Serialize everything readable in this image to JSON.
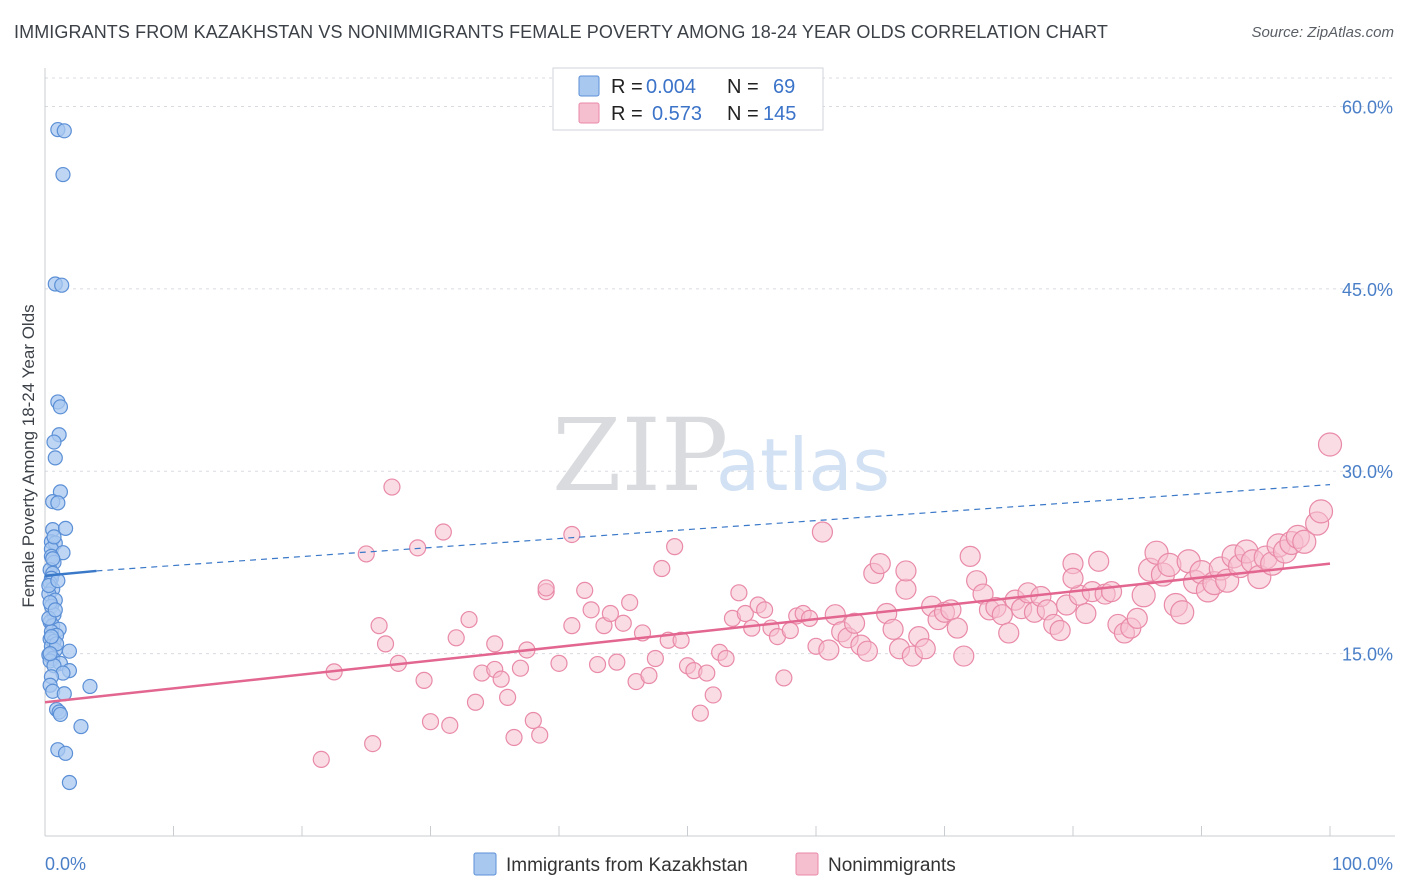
{
  "title": "IMMIGRANTS FROM KAZAKHSTAN VS NONIMMIGRANTS FEMALE POVERTY AMONG 18-24 YEAR OLDS CORRELATION CHART",
  "source": "Source: ZipAtlas.com",
  "watermark": {
    "zip": "ZIP",
    "atlas": "atlas"
  },
  "colors": {
    "blue_fill": "#a8c8f0",
    "blue_stroke": "#5b8fd6",
    "blue_line": "#3a78c8",
    "pink_fill": "#f6bfd0",
    "pink_stroke": "#e98aa8",
    "pink_line": "#e2668f",
    "grid": "#d8dbe0",
    "axis": "#c9ccd1"
  },
  "legend": {
    "rows": [
      {
        "series": "blue",
        "r_label": "R =",
        "r_value": "0.004",
        "n_label": "N =",
        "n_value": "69"
      },
      {
        "series": "pink",
        "r_label": "R =",
        "r_value": "0.573",
        "n_label": "N =",
        "n_value": "145"
      }
    ]
  },
  "chart_data": {
    "type": "scatter",
    "title": "IMMIGRANTS FROM KAZAKHSTAN VS NONIMMIGRANTS FEMALE POVERTY AMONG 18-24 YEAR OLDS CORRELATION CHART",
    "xlabel": "",
    "ylabel": "Female Poverty Among 18-24 Year Olds",
    "xlim": [
      0,
      100
    ],
    "ylim": [
      0,
      63
    ],
    "x_tick_labels": [
      {
        "value": 0,
        "label": "0.0%"
      },
      {
        "value": 100,
        "label": "100.0%"
      }
    ],
    "y_tick_labels": [
      {
        "value": 15,
        "label": "15.0%"
      },
      {
        "value": 30,
        "label": "30.0%"
      },
      {
        "value": 45,
        "label": "45.0%"
      },
      {
        "value": 60,
        "label": "60.0%"
      }
    ],
    "grid": true,
    "legend_position": "top-center",
    "series": [
      {
        "name": "Immigrants from Kazakhstan",
        "color": "blue",
        "R": 0.004,
        "N": 69,
        "trend": {
          "x": [
            0,
            4
          ],
          "y": [
            21.4,
            21.8
          ],
          "solid_until": 4,
          "dashed_to": [
            100,
            28.9
          ]
        },
        "points": [
          [
            1.0,
            58.1
          ],
          [
            1.5,
            58.0
          ],
          [
            1.4,
            54.4
          ],
          [
            0.8,
            45.4
          ],
          [
            1.3,
            45.3
          ],
          [
            1.0,
            35.7
          ],
          [
            1.2,
            35.3
          ],
          [
            1.1,
            33.0
          ],
          [
            0.7,
            32.4
          ],
          [
            0.8,
            31.1
          ],
          [
            1.2,
            28.3
          ],
          [
            0.6,
            27.5
          ],
          [
            1.0,
            27.4
          ],
          [
            0.6,
            25.2
          ],
          [
            1.6,
            25.3
          ],
          [
            0.5,
            24.2
          ],
          [
            0.8,
            24.1
          ],
          [
            0.5,
            23.6
          ],
          [
            1.4,
            23.3
          ],
          [
            0.5,
            23.0
          ],
          [
            0.7,
            22.5
          ],
          [
            0.4,
            21.9
          ],
          [
            0.6,
            21.6
          ],
          [
            0.5,
            21.2
          ],
          [
            0.4,
            20.8
          ],
          [
            0.6,
            20.3
          ],
          [
            0.3,
            19.9
          ],
          [
            0.8,
            19.4
          ],
          [
            0.5,
            18.9
          ],
          [
            0.7,
            18.2
          ],
          [
            0.4,
            17.6
          ],
          [
            0.6,
            17.3
          ],
          [
            1.1,
            17.0
          ],
          [
            0.5,
            16.8
          ],
          [
            0.9,
            16.5
          ],
          [
            0.4,
            16.2
          ],
          [
            0.7,
            16.0
          ],
          [
            0.5,
            15.6
          ],
          [
            0.8,
            15.3
          ],
          [
            1.9,
            15.2
          ],
          [
            0.3,
            14.9
          ],
          [
            0.6,
            14.6
          ],
          [
            0.4,
            14.4
          ],
          [
            1.2,
            14.2
          ],
          [
            0.7,
            14.0
          ],
          [
            1.9,
            13.6
          ],
          [
            1.4,
            13.4
          ],
          [
            0.5,
            13.1
          ],
          [
            0.4,
            12.4
          ],
          [
            3.5,
            12.3
          ],
          [
            0.6,
            11.9
          ],
          [
            1.5,
            11.7
          ],
          [
            0.9,
            10.4
          ],
          [
            1.1,
            10.2
          ],
          [
            1.2,
            10.0
          ],
          [
            2.8,
            9.0
          ],
          [
            1.0,
            7.1
          ],
          [
            1.6,
            6.8
          ],
          [
            1.9,
            4.4
          ],
          [
            0.3,
            17.9
          ],
          [
            0.9,
            15.8
          ],
          [
            0.4,
            19.2
          ],
          [
            0.6,
            22.8
          ],
          [
            0.8,
            18.6
          ],
          [
            0.5,
            16.4
          ],
          [
            0.7,
            24.6
          ],
          [
            0.3,
            20.6
          ],
          [
            1.0,
            21.0
          ],
          [
            0.4,
            15.0
          ]
        ]
      },
      {
        "name": "Nonimmigrants",
        "color": "pink",
        "R": 0.573,
        "N": 145,
        "trend": {
          "x": [
            0,
            100
          ],
          "y": [
            11.0,
            22.4
          ]
        },
        "points": [
          [
            21.5,
            6.3
          ],
          [
            25.0,
            23.2
          ],
          [
            25.5,
            7.6
          ],
          [
            26.0,
            17.3
          ],
          [
            26.5,
            15.8
          ],
          [
            27.0,
            28.7
          ],
          [
            27.5,
            14.2
          ],
          [
            29.0,
            23.7
          ],
          [
            29.5,
            12.8
          ],
          [
            30.0,
            9.4
          ],
          [
            31.0,
            25.0
          ],
          [
            31.5,
            9.1
          ],
          [
            32.0,
            16.3
          ],
          [
            33.5,
            11.0
          ],
          [
            34.0,
            13.4
          ],
          [
            35.0,
            15.8
          ],
          [
            35.0,
            13.7
          ],
          [
            35.5,
            12.9
          ],
          [
            36.0,
            11.4
          ],
          [
            36.5,
            8.1
          ],
          [
            37.0,
            13.8
          ],
          [
            37.5,
            15.3
          ],
          [
            38.0,
            9.5
          ],
          [
            38.5,
            8.3
          ],
          [
            39.0,
            20.1
          ],
          [
            39.0,
            20.4
          ],
          [
            40.0,
            14.2
          ],
          [
            41.0,
            24.8
          ],
          [
            41.0,
            17.3
          ],
          [
            42.0,
            20.2
          ],
          [
            42.5,
            18.6
          ],
          [
            43.0,
            14.1
          ],
          [
            43.5,
            17.3
          ],
          [
            44.0,
            18.3
          ],
          [
            44.5,
            14.3
          ],
          [
            45.0,
            17.5
          ],
          [
            45.5,
            19.2
          ],
          [
            46.0,
            12.7
          ],
          [
            47.0,
            13.2
          ],
          [
            47.5,
            14.6
          ],
          [
            48.0,
            22.0
          ],
          [
            48.5,
            16.1
          ],
          [
            49.0,
            23.8
          ],
          [
            49.5,
            16.1
          ],
          [
            50.0,
            14.0
          ],
          [
            50.5,
            13.6
          ],
          [
            51.0,
            10.1
          ],
          [
            51.5,
            13.4
          ],
          [
            52.0,
            11.6
          ],
          [
            52.5,
            15.1
          ],
          [
            53.0,
            14.6
          ],
          [
            53.5,
            17.9
          ],
          [
            54.0,
            20.0
          ],
          [
            54.5,
            18.3
          ],
          [
            55.0,
            17.1
          ],
          [
            55.5,
            19.0
          ],
          [
            56.0,
            18.6
          ],
          [
            56.5,
            17.1
          ],
          [
            57.0,
            16.4
          ],
          [
            57.5,
            13.0
          ],
          [
            58.0,
            16.9
          ],
          [
            58.5,
            18.1
          ],
          [
            59.0,
            18.3
          ],
          [
            59.5,
            17.9
          ],
          [
            60.0,
            15.6
          ],
          [
            60.5,
            25.0
          ],
          [
            61.0,
            15.3
          ],
          [
            61.5,
            18.2
          ],
          [
            62.0,
            16.8
          ],
          [
            62.5,
            16.3
          ],
          [
            63.0,
            17.5
          ],
          [
            63.5,
            15.7
          ],
          [
            64.0,
            15.2
          ],
          [
            64.5,
            21.6
          ],
          [
            65.0,
            22.4
          ],
          [
            65.5,
            18.3
          ],
          [
            66.0,
            17.0
          ],
          [
            66.5,
            15.4
          ],
          [
            67.0,
            20.3
          ],
          [
            67.5,
            14.8
          ],
          [
            68.0,
            16.4
          ],
          [
            68.5,
            15.4
          ],
          [
            69.0,
            18.9
          ],
          [
            69.5,
            17.8
          ],
          [
            70.0,
            18.4
          ],
          [
            70.5,
            18.6
          ],
          [
            71.0,
            17.1
          ],
          [
            71.5,
            14.8
          ],
          [
            72.0,
            23.0
          ],
          [
            72.5,
            21.0
          ],
          [
            73.0,
            19.9
          ],
          [
            73.5,
            18.6
          ],
          [
            74.0,
            18.8
          ],
          [
            74.5,
            18.2
          ],
          [
            75.0,
            16.7
          ],
          [
            75.5,
            19.4
          ],
          [
            76.0,
            18.7
          ],
          [
            76.5,
            20.0
          ],
          [
            77.0,
            18.4
          ],
          [
            77.5,
            19.7
          ],
          [
            78.0,
            18.6
          ],
          [
            78.5,
            17.4
          ],
          [
            79.0,
            16.9
          ],
          [
            79.5,
            19.0
          ],
          [
            80.0,
            22.4
          ],
          [
            80.5,
            19.8
          ],
          [
            81.0,
            18.3
          ],
          [
            81.5,
            20.1
          ],
          [
            82.0,
            22.6
          ],
          [
            82.5,
            19.9
          ],
          [
            83.0,
            20.1
          ],
          [
            83.5,
            17.4
          ],
          [
            84.0,
            16.7
          ],
          [
            84.5,
            17.1
          ],
          [
            85.0,
            17.9
          ],
          [
            85.5,
            19.8
          ],
          [
            86.0,
            21.9
          ],
          [
            86.5,
            23.3
          ],
          [
            87.0,
            21.5
          ],
          [
            87.5,
            22.3
          ],
          [
            88.0,
            19.0
          ],
          [
            88.5,
            18.4
          ],
          [
            89.0,
            22.6
          ],
          [
            89.5,
            20.9
          ],
          [
            90.0,
            21.7
          ],
          [
            90.5,
            20.2
          ],
          [
            91.0,
            20.8
          ],
          [
            91.5,
            22.0
          ],
          [
            92.0,
            21.0
          ],
          [
            92.5,
            23.0
          ],
          [
            93.0,
            22.2
          ],
          [
            93.5,
            23.4
          ],
          [
            94.0,
            22.6
          ],
          [
            94.5,
            21.3
          ],
          [
            95.0,
            22.9
          ],
          [
            95.5,
            22.4
          ],
          [
            96.0,
            23.9
          ],
          [
            96.5,
            23.4
          ],
          [
            97.0,
            24.1
          ],
          [
            97.5,
            24.6
          ],
          [
            98.0,
            24.2
          ],
          [
            99.0,
            25.7
          ],
          [
            99.3,
            26.7
          ],
          [
            100.0,
            32.2
          ],
          [
            22.5,
            13.5
          ],
          [
            33.0,
            17.8
          ],
          [
            46.5,
            16.7
          ],
          [
            67.0,
            21.8
          ],
          [
            80.0,
            21.2
          ]
        ]
      }
    ]
  },
  "bottom_legend": {
    "items": [
      {
        "series": "blue",
        "label": "Immigrants from Kazakhstan"
      },
      {
        "series": "pink",
        "label": "Nonimmigrants"
      }
    ]
  }
}
